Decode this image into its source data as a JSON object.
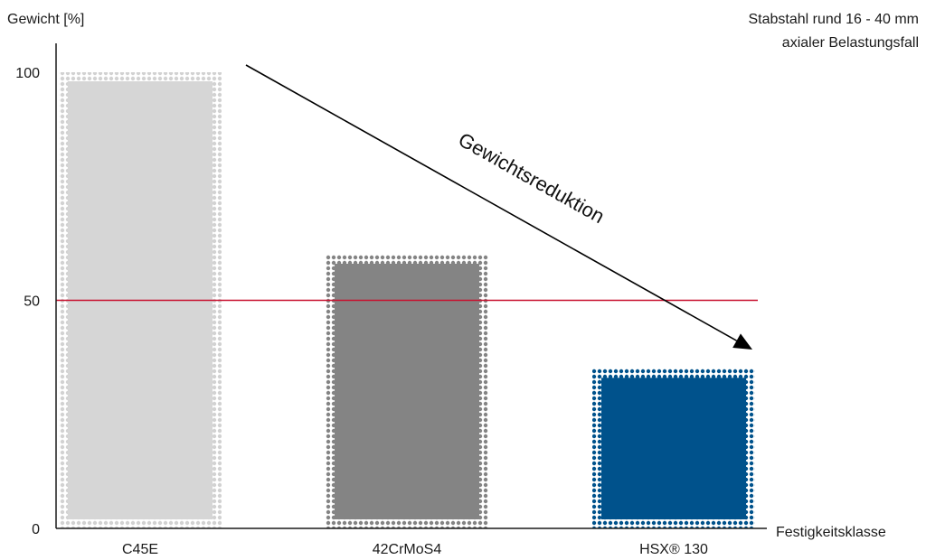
{
  "chart_data": {
    "type": "bar",
    "title": "Stabstahl rund 16 - 40 mm",
    "subtitle": "axialer Belastungsfall",
    "ylabel": "Gewicht [%]",
    "xlabel": "Festigkeitsklasse",
    "ylim": [
      0,
      100
    ],
    "yticks": [
      0,
      50,
      100
    ],
    "categories": [
      "C45E",
      "42CrMoS4",
      "HSX® 130"
    ],
    "values": [
      100,
      60,
      35
    ],
    "bar_colors": [
      "#d6d6d6",
      "#848484",
      "#00528c"
    ],
    "reference_line": {
      "value": 50,
      "color": "#c8102e"
    },
    "annotation": {
      "text": "Gewichtsreduktion",
      "from_y": 100,
      "to_y": 40
    },
    "grid": false,
    "legend": "none"
  }
}
